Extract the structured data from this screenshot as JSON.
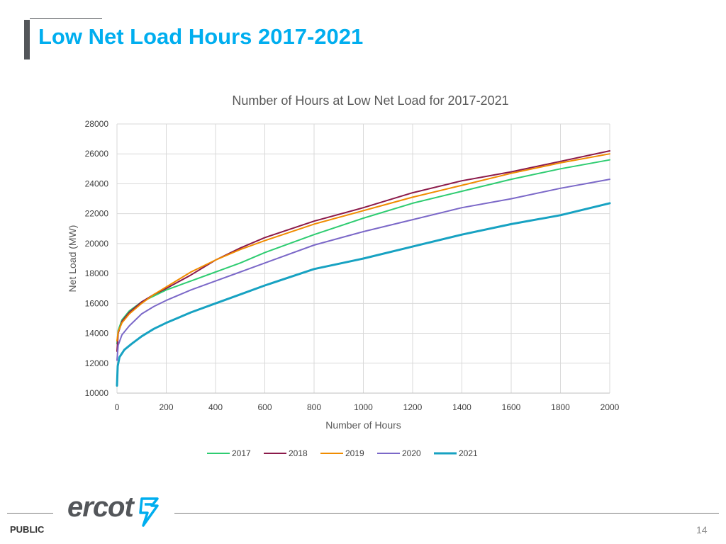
{
  "slide": {
    "title": "Low Net Load Hours 2017-2021",
    "footer_label": "PUBLIC",
    "page_number": "14",
    "logo_text": "ercot",
    "logo_icon": "ercot-bolt-icon",
    "accent_color": "#00aeef"
  },
  "chart_data": {
    "type": "line",
    "title": "Number of Hours at Low Net Load for 2017-2021",
    "xlabel": "Number of Hours",
    "ylabel": "Net Load (MW)",
    "xlim": [
      0,
      2000
    ],
    "ylim": [
      10000,
      28000
    ],
    "xticks": [
      0,
      200,
      400,
      600,
      800,
      1000,
      1200,
      1400,
      1600,
      1800,
      2000
    ],
    "yticks": [
      10000,
      12000,
      14000,
      16000,
      18000,
      20000,
      22000,
      24000,
      26000,
      28000
    ],
    "grid": true,
    "legend_position": "bottom",
    "series": [
      {
        "name": "2017",
        "color": "#2ecc71",
        "width": 2,
        "x": [
          0,
          5,
          20,
          50,
          100,
          150,
          200,
          300,
          400,
          500,
          600,
          800,
          1000,
          1200,
          1400,
          1600,
          1800,
          2000
        ],
        "y": [
          13300,
          14200,
          14900,
          15500,
          16100,
          16500,
          16900,
          17500,
          18100,
          18700,
          19400,
          20600,
          21700,
          22700,
          23500,
          24300,
          25000,
          25600
        ]
      },
      {
        "name": "2018",
        "color": "#8b1a4a",
        "width": 2,
        "x": [
          0,
          5,
          20,
          50,
          100,
          150,
          200,
          300,
          400,
          500,
          600,
          800,
          1000,
          1200,
          1400,
          1600,
          1800,
          2000
        ],
        "y": [
          12800,
          14000,
          14800,
          15400,
          16100,
          16600,
          17000,
          17900,
          18900,
          19700,
          20400,
          21500,
          22400,
          23400,
          24200,
          24800,
          25500,
          26200
        ]
      },
      {
        "name": "2019",
        "color": "#f08c00",
        "width": 2,
        "x": [
          0,
          5,
          20,
          50,
          100,
          150,
          200,
          300,
          400,
          500,
          600,
          800,
          1000,
          1200,
          1400,
          1600,
          1800,
          2000
        ],
        "y": [
          13500,
          14100,
          14700,
          15300,
          16000,
          16600,
          17100,
          18100,
          18900,
          19600,
          20200,
          21300,
          22200,
          23100,
          23900,
          24700,
          25400,
          26000
        ]
      },
      {
        "name": "2020",
        "color": "#7b68c8",
        "width": 2,
        "x": [
          0,
          5,
          20,
          50,
          100,
          150,
          200,
          300,
          400,
          500,
          600,
          800,
          1000,
          1200,
          1400,
          1600,
          1800,
          2000
        ],
        "y": [
          12200,
          13200,
          13900,
          14500,
          15300,
          15800,
          16200,
          16900,
          17500,
          18100,
          18700,
          19900,
          20800,
          21600,
          22400,
          23000,
          23700,
          24300
        ]
      },
      {
        "name": "2021",
        "color": "#17a2c2",
        "width": 3,
        "x": [
          0,
          3,
          10,
          30,
          60,
          100,
          150,
          200,
          300,
          400,
          500,
          600,
          800,
          1000,
          1200,
          1400,
          1600,
          1800,
          2000
        ],
        "y": [
          10500,
          11800,
          12400,
          12900,
          13300,
          13800,
          14300,
          14700,
          15400,
          16000,
          16600,
          17200,
          18300,
          19000,
          19800,
          20600,
          21300,
          21900,
          22700
        ]
      }
    ]
  }
}
